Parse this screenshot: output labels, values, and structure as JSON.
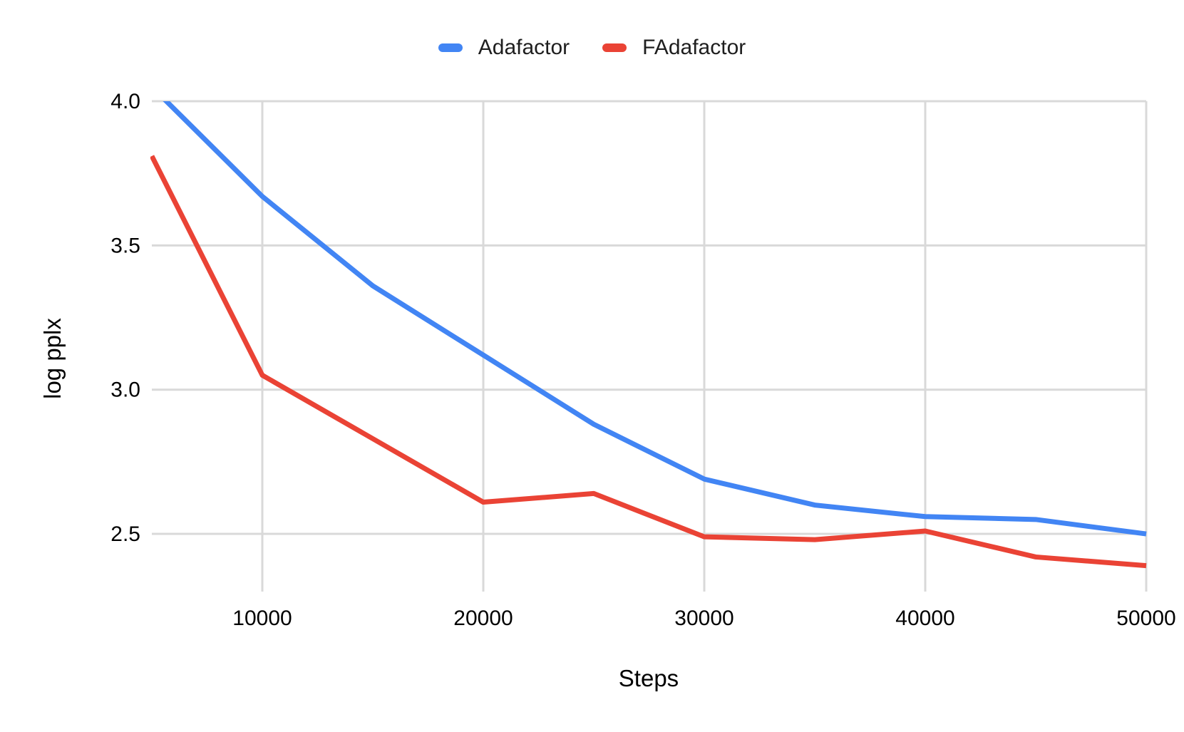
{
  "chart_data": {
    "type": "line",
    "title": "",
    "xlabel": "Steps",
    "ylabel": "log pplx",
    "x": [
      5000,
      10000,
      15000,
      20000,
      25000,
      30000,
      35000,
      40000,
      45000,
      50000
    ],
    "series": [
      {
        "name": "Adafactor",
        "color": "#4285F4",
        "values": [
          4.05,
          3.67,
          3.36,
          3.12,
          2.88,
          2.69,
          2.6,
          2.56,
          2.55,
          2.5
        ]
      },
      {
        "name": "FAdafactor",
        "color": "#EA4335",
        "values": [
          3.81,
          3.05,
          2.83,
          2.61,
          2.64,
          2.49,
          2.48,
          2.51,
          2.42,
          2.39
        ]
      }
    ],
    "xlim": [
      5000,
      50000
    ],
    "ylim": [
      2.3,
      4.0
    ],
    "x_ticks": [
      10000,
      20000,
      30000,
      40000,
      50000
    ],
    "x_tick_labels": [
      "10000",
      "20000",
      "30000",
      "40000",
      "50000"
    ],
    "y_ticks": [
      2.5,
      3.0,
      3.5,
      4.0
    ],
    "y_tick_labels": [
      "2.5",
      "3.0",
      "3.5",
      "4.0"
    ],
    "grid": true,
    "legend_position": "top-center",
    "gridline_color": "#d9d9d9",
    "background_color": "#ffffff",
    "text_color": "#000000",
    "note": "Adafactor first point exceeds y-axis max and is clipped at 4.0"
  }
}
